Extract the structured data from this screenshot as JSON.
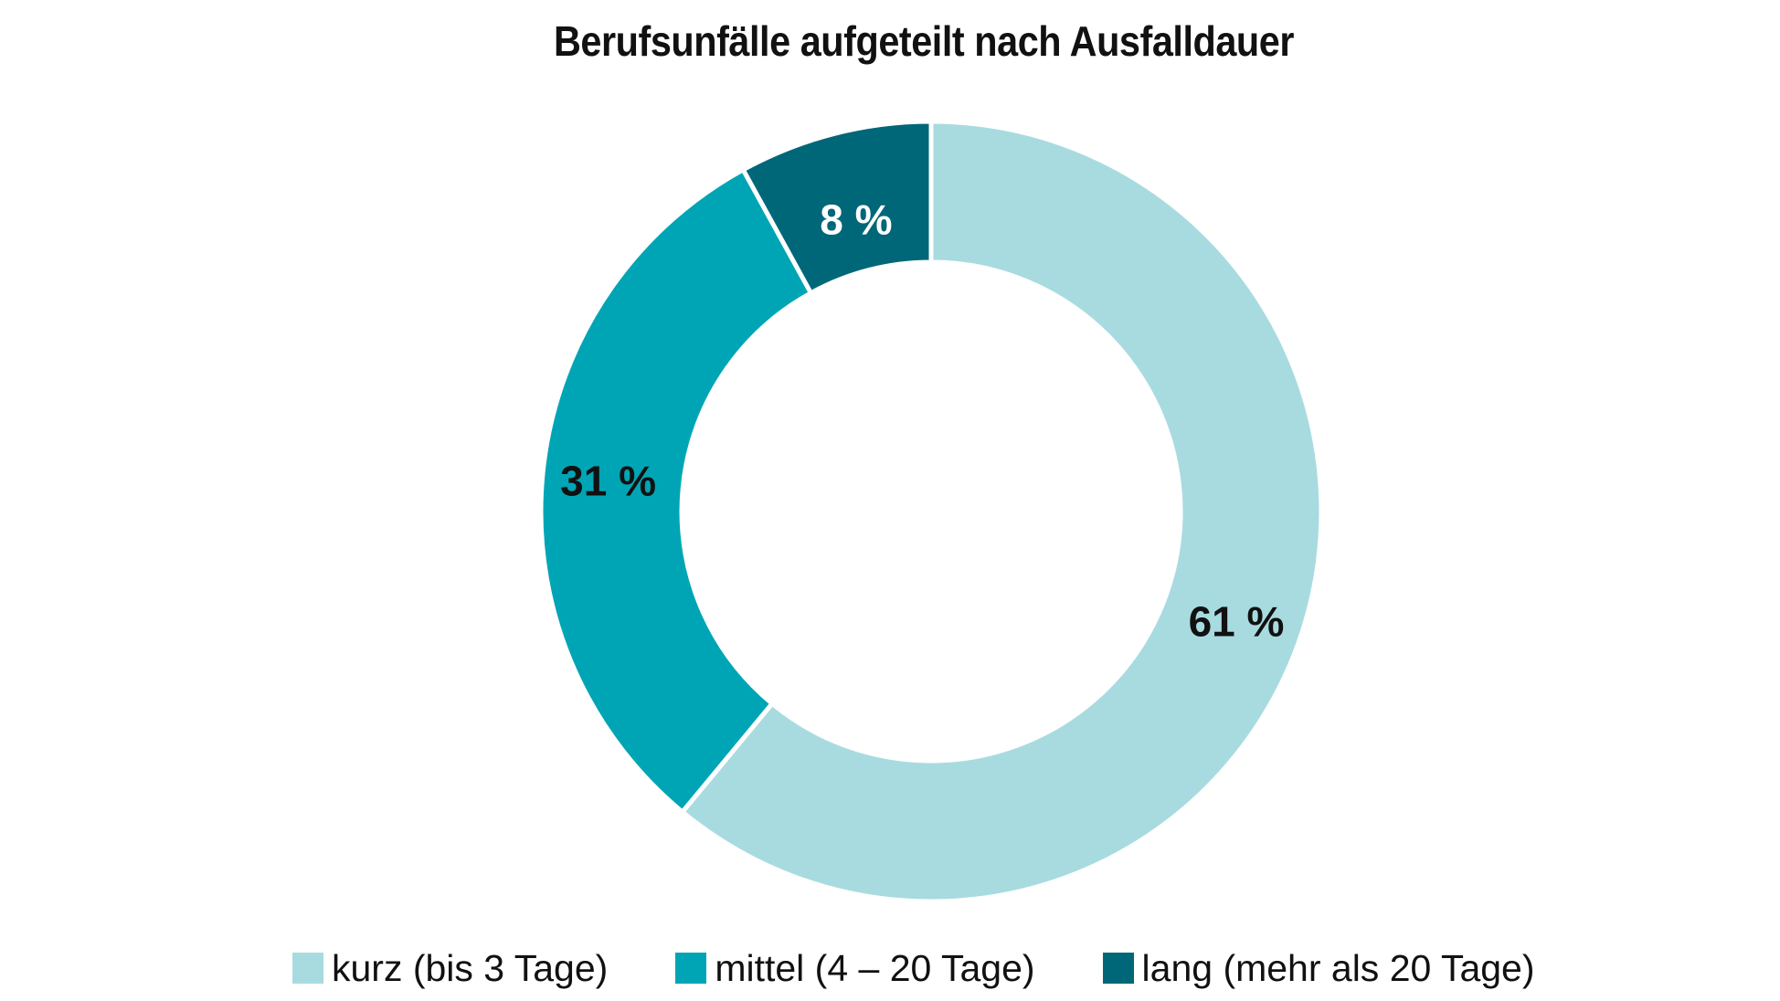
{
  "chart_data": {
    "type": "pie",
    "variant": "donut",
    "title": "Berufsunfälle aufgeteilt nach Ausfalldauer",
    "slices": [
      {
        "name": "kurz (bis 3 Tage)",
        "value": 61,
        "label": "61 %",
        "color": "#a8dbe0",
        "label_color": "#111111"
      },
      {
        "name": "mittel (4 – 20 Tage)",
        "value": 31,
        "label": "31 %",
        "color": "#00a5b5",
        "label_color": "#111111"
      },
      {
        "name": "lang (mehr als 20 Tage)",
        "value": 8,
        "label": "8 %",
        "color": "#006779",
        "label_color": "#ffffff"
      }
    ],
    "legend_position": "bottom",
    "start_angle_deg": 0,
    "direction": "clockwise"
  }
}
